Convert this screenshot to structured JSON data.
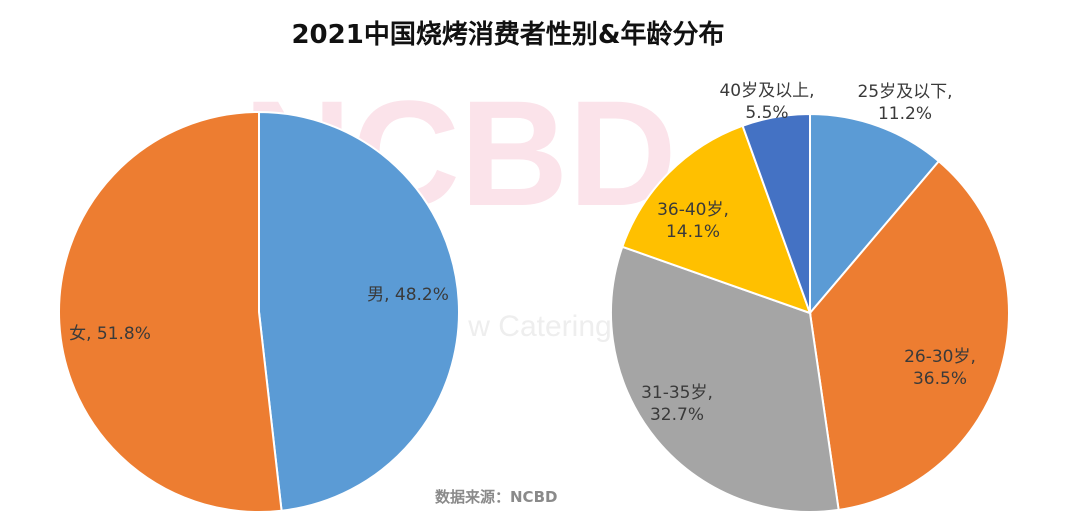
{
  "title": "2021中国烧烤消费者性别&年龄分布",
  "source": "数据来源：NCBD",
  "watermark": {
    "big": "NCBD",
    "small": "w Catering"
  },
  "chart_data": [
    {
      "type": "pie",
      "title": "",
      "slices": [
        {
          "name": "男",
          "value": 48.2,
          "label": "男, 48.2%",
          "color": "#5B9BD5"
        },
        {
          "name": "女",
          "value": 51.8,
          "label": "女, 51.8%",
          "color": "#ED7D31"
        }
      ]
    },
    {
      "type": "pie",
      "title": "",
      "slices": [
        {
          "name": "25岁及以下",
          "value": 11.2,
          "label_lines": [
            "25岁及以下,",
            "11.2%"
          ],
          "color": "#5B9BD5"
        },
        {
          "name": "26-30岁",
          "value": 36.5,
          "label_lines": [
            "26-30岁,",
            "36.5%"
          ],
          "color": "#ED7D31"
        },
        {
          "name": "31-35岁",
          "value": 32.7,
          "label_lines": [
            "31-35岁,",
            "32.7%"
          ],
          "color": "#A5A5A5"
        },
        {
          "name": "36-40岁",
          "value": 14.1,
          "label_lines": [
            "36-40岁,",
            "14.1%"
          ],
          "color": "#FFC000"
        },
        {
          "name": "40岁及以上",
          "value": 5.5,
          "label_lines": [
            "40岁及以上,",
            "5.5%"
          ],
          "color": "#4472C4"
        }
      ]
    }
  ]
}
